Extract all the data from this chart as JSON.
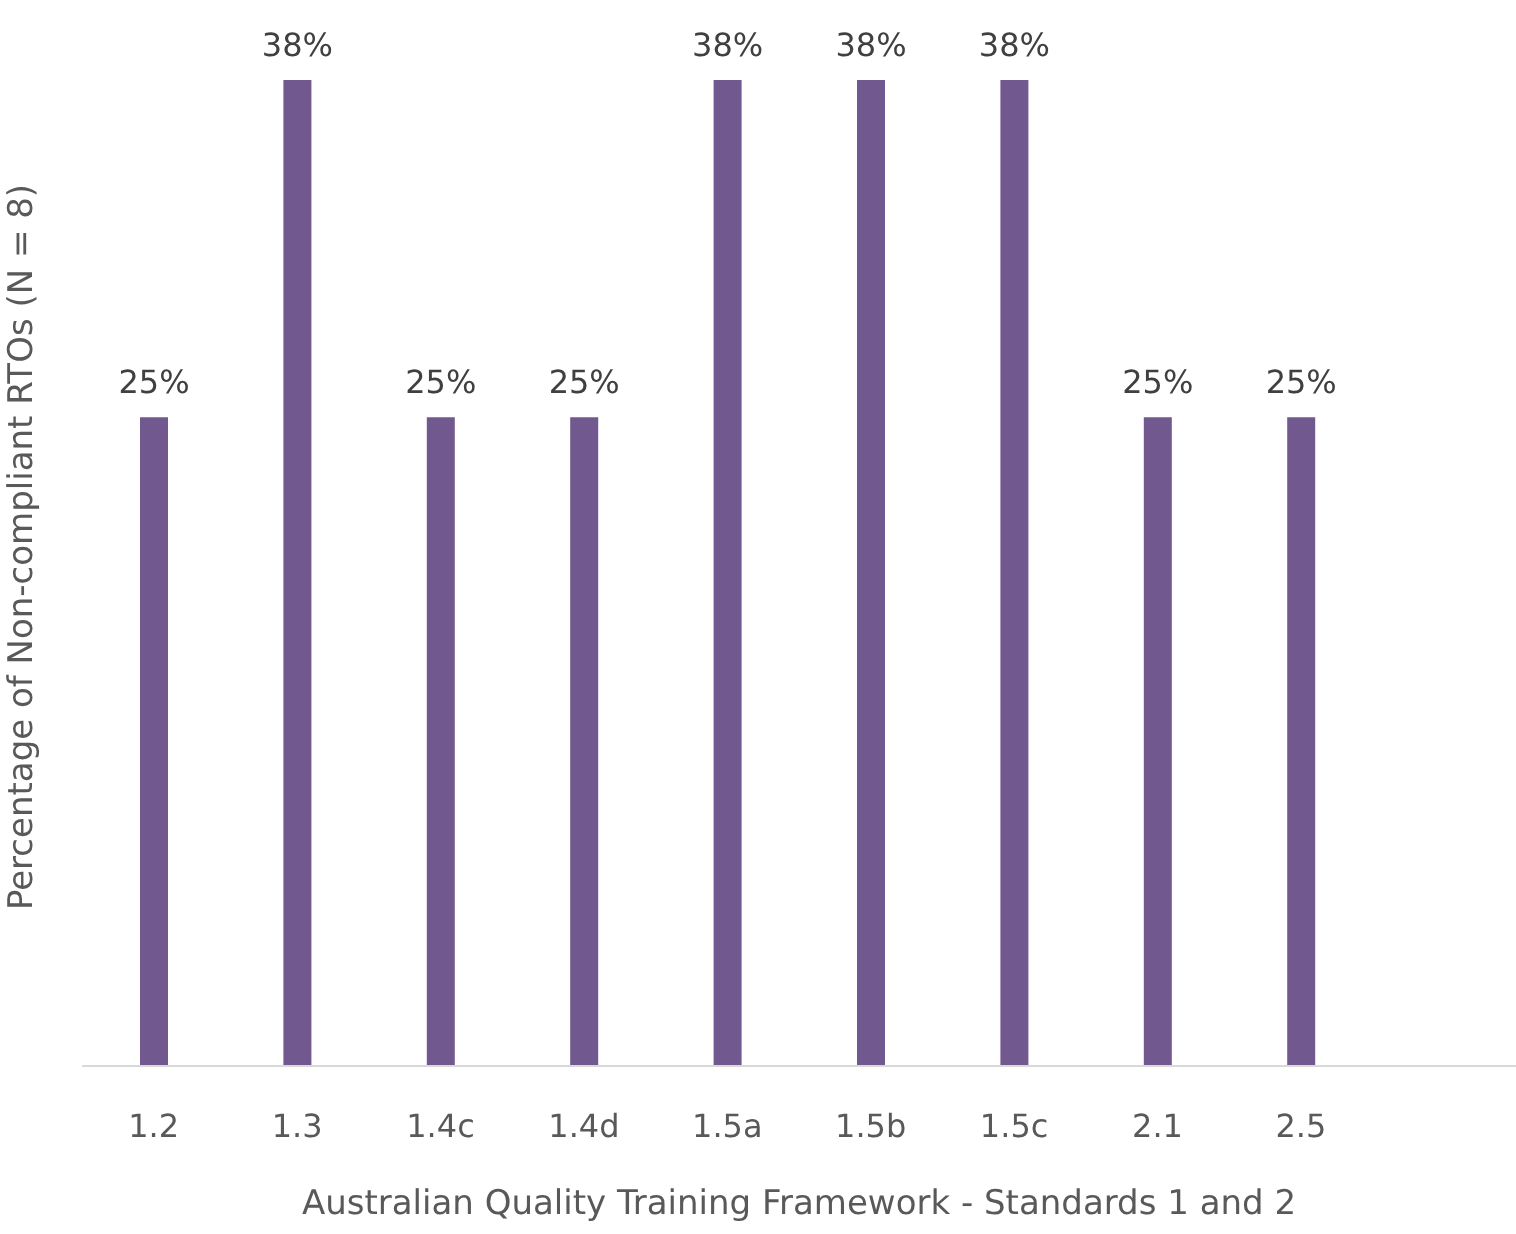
{
  "chart_data": {
    "type": "bar",
    "xlabel": "Australian Quality Training Framework - Standards 1 and 2",
    "ylabel": "Percentage of Non-compliant RTOs (N = 8)",
    "categories": [
      "1.2",
      "1.3",
      "1.4c",
      "1.4d",
      "1.5a",
      "1.5b",
      "1.5c",
      "2.1",
      "2.5",
      null
    ],
    "values": [
      25,
      38,
      25,
      25,
      38,
      38,
      38,
      25,
      25,
      null
    ],
    "value_labels": [
      "25%",
      "38%",
      "25%",
      "25%",
      "38%",
      "38%",
      "38%",
      "25%",
      "25%",
      null
    ],
    "color": "#71588f",
    "tick_labels": "x",
    "legend": false
  }
}
